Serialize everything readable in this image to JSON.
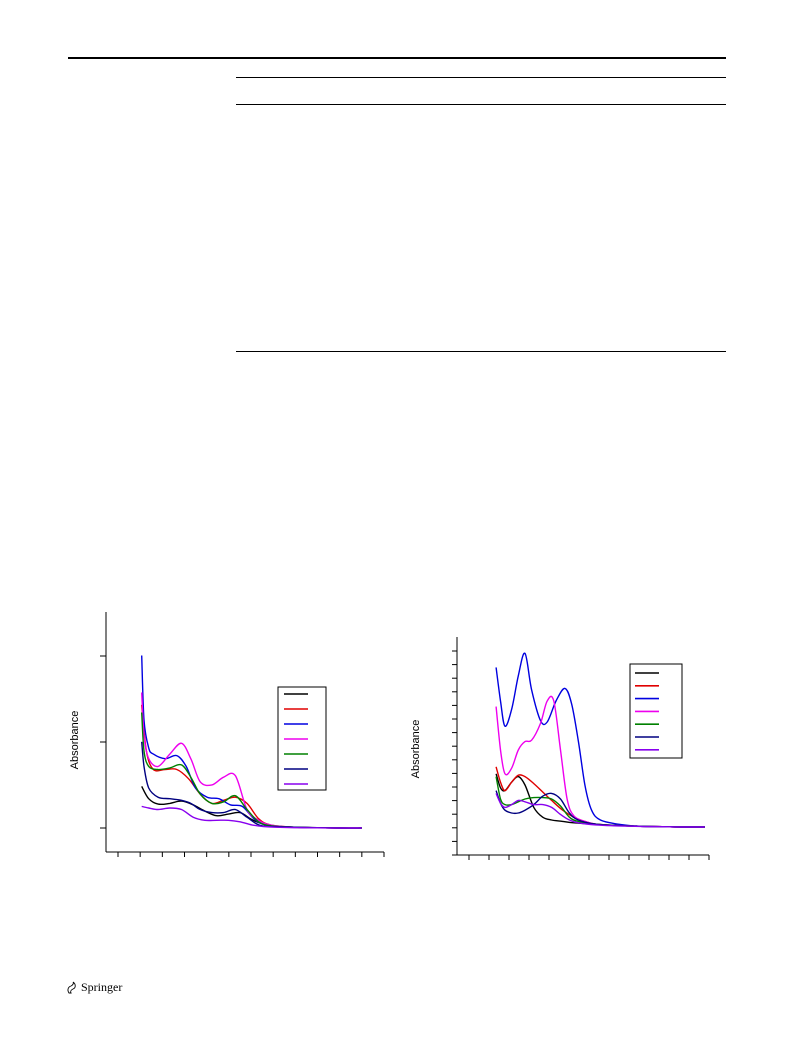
{
  "charts": [
    {
      "type": "line",
      "ylabel": "Absorbance",
      "series": [
        {
          "color": "#000000",
          "x": [
            0.05,
            0.08,
            0.12,
            0.17,
            0.22,
            0.27,
            0.32,
            0.37,
            0.42,
            0.47,
            0.52,
            0.57,
            0.62,
            0.7,
            0.8,
            0.9,
            0.99
          ],
          "y": [
            0.27,
            0.19,
            0.155,
            0.16,
            0.175,
            0.15,
            0.11,
            0.08,
            0.09,
            0.1,
            0.055,
            0.025,
            0.01,
            0.005,
            0.002,
            0.0,
            0.0
          ]
        },
        {
          "color": "#e00000",
          "x": [
            0.05,
            0.07,
            0.1,
            0.15,
            0.2,
            0.25,
            0.3,
            0.35,
            0.4,
            0.45,
            0.5,
            0.55,
            0.6,
            0.7,
            0.8,
            0.9,
            0.99
          ],
          "y": [
            0.8,
            0.5,
            0.38,
            0.38,
            0.38,
            0.32,
            0.22,
            0.16,
            0.18,
            0.2,
            0.16,
            0.06,
            0.02,
            0.005,
            0.002,
            0.0,
            0.0
          ]
        },
        {
          "color": "#0000e0",
          "x": [
            0.05,
            0.06,
            0.08,
            0.1,
            0.15,
            0.2,
            0.24,
            0.28,
            0.33,
            0.38,
            0.43,
            0.48,
            0.53,
            0.58,
            0.7,
            0.8,
            0.9,
            0.99
          ],
          "y": [
            1.12,
            0.7,
            0.52,
            0.48,
            0.45,
            0.47,
            0.4,
            0.26,
            0.2,
            0.19,
            0.15,
            0.14,
            0.06,
            0.02,
            0.005,
            0.002,
            0.0,
            0.0
          ]
        },
        {
          "color": "#ee00ee",
          "x": [
            0.05,
            0.06,
            0.08,
            0.12,
            0.17,
            0.22,
            0.26,
            0.3,
            0.35,
            0.4,
            0.45,
            0.5,
            0.55,
            0.6,
            0.7,
            0.8,
            0.9,
            0.99
          ],
          "y": [
            0.88,
            0.6,
            0.45,
            0.4,
            0.48,
            0.55,
            0.45,
            0.3,
            0.28,
            0.33,
            0.34,
            0.12,
            0.05,
            0.02,
            0.005,
            0.002,
            0.0,
            0.0
          ]
        },
        {
          "color": "#008000",
          "x": [
            0.05,
            0.06,
            0.08,
            0.12,
            0.17,
            0.22,
            0.26,
            0.3,
            0.35,
            0.4,
            0.45,
            0.5,
            0.55,
            0.6,
            0.7,
            0.8,
            0.9,
            0.99
          ],
          "y": [
            0.75,
            0.5,
            0.4,
            0.38,
            0.39,
            0.41,
            0.33,
            0.22,
            0.16,
            0.17,
            0.21,
            0.12,
            0.04,
            0.015,
            0.005,
            0.002,
            0.0,
            0.0
          ]
        },
        {
          "color": "#000080",
          "x": [
            0.05,
            0.06,
            0.08,
            0.12,
            0.17,
            0.22,
            0.26,
            0.3,
            0.35,
            0.4,
            0.45,
            0.5,
            0.55,
            0.6,
            0.7,
            0.8,
            0.9,
            0.99
          ],
          "y": [
            0.56,
            0.4,
            0.26,
            0.2,
            0.19,
            0.18,
            0.16,
            0.12,
            0.1,
            0.1,
            0.12,
            0.07,
            0.02,
            0.01,
            0.005,
            0.002,
            0.0,
            0.0
          ]
        },
        {
          "color": "#8800ee",
          "x": [
            0.05,
            0.08,
            0.12,
            0.17,
            0.22,
            0.27,
            0.32,
            0.37,
            0.42,
            0.47,
            0.52,
            0.57,
            0.62,
            0.7,
            0.8,
            0.9,
            0.99
          ],
          "y": [
            0.14,
            0.13,
            0.12,
            0.13,
            0.12,
            0.07,
            0.05,
            0.05,
            0.05,
            0.04,
            0.02,
            0.01,
            0.005,
            0.002,
            0.001,
            0.0,
            0.0
          ]
        }
      ]
    },
    {
      "type": "line",
      "ylabel": "Absorbance",
      "series": [
        {
          "color": "#000000",
          "x": [
            0.05,
            0.07,
            0.09,
            0.12,
            0.15,
            0.18,
            0.22,
            0.26,
            0.3,
            0.35,
            0.4,
            0.5,
            0.6,
            0.7,
            0.8,
            0.9,
            0.99
          ],
          "y": [
            0.38,
            0.28,
            0.26,
            0.32,
            0.36,
            0.3,
            0.14,
            0.07,
            0.05,
            0.04,
            0.03,
            0.02,
            0.01,
            0.005,
            0.002,
            0.0,
            0.0
          ]
        },
        {
          "color": "#e00000",
          "x": [
            0.05,
            0.07,
            0.09,
            0.12,
            0.15,
            0.18,
            0.22,
            0.26,
            0.3,
            0.35,
            0.4,
            0.45,
            0.5,
            0.6,
            0.7,
            0.8,
            0.9,
            0.99
          ],
          "y": [
            0.43,
            0.32,
            0.26,
            0.32,
            0.37,
            0.36,
            0.31,
            0.25,
            0.19,
            0.12,
            0.07,
            0.04,
            0.02,
            0.01,
            0.005,
            0.002,
            0.0,
            0.0
          ]
        },
        {
          "color": "#0000e0",
          "x": [
            0.05,
            0.07,
            0.09,
            0.12,
            0.15,
            0.18,
            0.21,
            0.25,
            0.28,
            0.32,
            0.36,
            0.39,
            0.42,
            0.45,
            0.48,
            0.52,
            0.6,
            0.7,
            0.8,
            0.9,
            0.99
          ],
          "y": [
            1.14,
            0.9,
            0.72,
            0.84,
            1.08,
            1.24,
            0.98,
            0.76,
            0.75,
            0.9,
            0.99,
            0.88,
            0.62,
            0.3,
            0.12,
            0.05,
            0.02,
            0.005,
            0.002,
            0.0,
            0.0
          ]
        },
        {
          "color": "#ee00ee",
          "x": [
            0.05,
            0.07,
            0.09,
            0.12,
            0.15,
            0.18,
            0.21,
            0.25,
            0.28,
            0.31,
            0.34,
            0.37,
            0.4,
            0.45,
            0.5,
            0.6,
            0.7,
            0.8,
            0.9,
            0.99
          ],
          "y": [
            0.86,
            0.55,
            0.38,
            0.42,
            0.55,
            0.61,
            0.62,
            0.74,
            0.9,
            0.9,
            0.55,
            0.2,
            0.08,
            0.04,
            0.02,
            0.01,
            0.005,
            0.002,
            0.0,
            0.0
          ]
        },
        {
          "color": "#008000",
          "x": [
            0.05,
            0.07,
            0.09,
            0.12,
            0.15,
            0.18,
            0.22,
            0.26,
            0.3,
            0.34,
            0.38,
            0.42,
            0.5,
            0.6,
            0.7,
            0.8,
            0.9,
            0.99
          ],
          "y": [
            0.36,
            0.2,
            0.16,
            0.16,
            0.18,
            0.2,
            0.21,
            0.21,
            0.2,
            0.15,
            0.07,
            0.04,
            0.02,
            0.01,
            0.005,
            0.002,
            0.0,
            0.0
          ]
        },
        {
          "color": "#000080",
          "x": [
            0.05,
            0.07,
            0.09,
            0.12,
            0.15,
            0.18,
            0.22,
            0.26,
            0.3,
            0.34,
            0.38,
            0.42,
            0.5,
            0.6,
            0.7,
            0.8,
            0.9,
            0.99
          ],
          "y": [
            0.26,
            0.17,
            0.12,
            0.1,
            0.1,
            0.12,
            0.16,
            0.22,
            0.24,
            0.2,
            0.1,
            0.05,
            0.02,
            0.01,
            0.005,
            0.002,
            0.0,
            0.0
          ]
        },
        {
          "color": "#8800ee",
          "x": [
            0.05,
            0.07,
            0.09,
            0.12,
            0.15,
            0.18,
            0.22,
            0.26,
            0.3,
            0.34,
            0.38,
            0.42,
            0.5,
            0.6,
            0.7,
            0.8,
            0.9,
            0.99
          ],
          "y": [
            0.24,
            0.17,
            0.14,
            0.16,
            0.19,
            0.18,
            0.16,
            0.16,
            0.14,
            0.09,
            0.05,
            0.03,
            0.015,
            0.008,
            0.004,
            0.002,
            0.0,
            0.0
          ]
        }
      ]
    }
  ],
  "footer": {
    "publisher": "Springer"
  }
}
